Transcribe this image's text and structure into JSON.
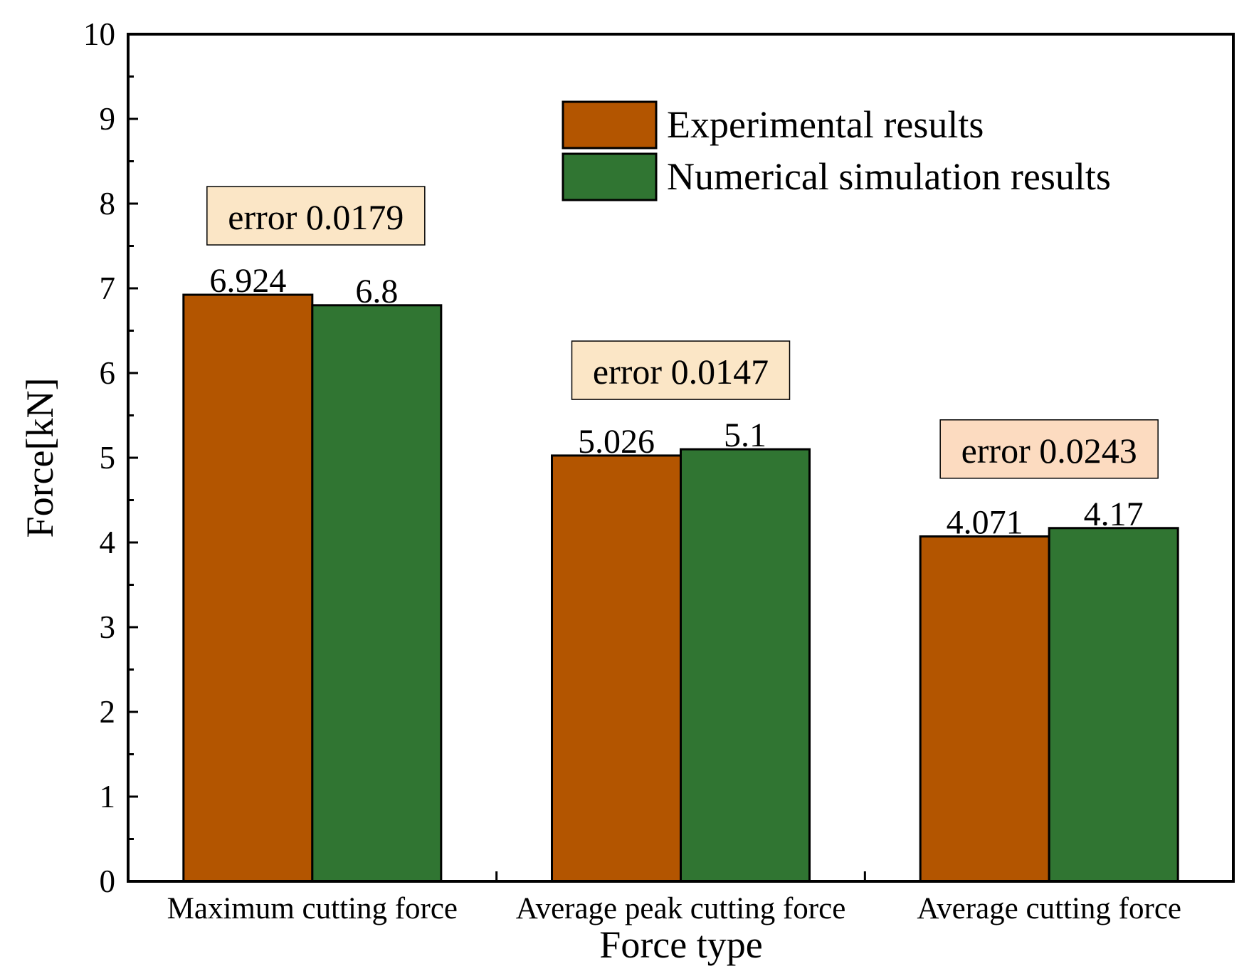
{
  "chart_data": {
    "type": "bar",
    "title": "",
    "xlabel": "Force type",
    "ylabel": "Force[kN]",
    "ylim": [
      0,
      10
    ],
    "yticks": [
      "0",
      "1",
      "2",
      "3",
      "4",
      "5",
      "6",
      "7",
      "8",
      "9",
      "10"
    ],
    "categories": [
      "Maximum cutting force",
      "Average peak cutting force",
      "Average cutting force"
    ],
    "series": [
      {
        "name": "Experimental results",
        "color": "#b35500",
        "values": [
          6.924,
          5.026,
          4.071
        ],
        "labels": [
          "6.924",
          "5.026",
          "4.071"
        ]
      },
      {
        "name": "Numerical simulation results",
        "color": "#307532",
        "values": [
          6.8,
          5.1,
          4.17
        ],
        "labels": [
          "6.8",
          "5.1",
          "4.17"
        ]
      }
    ],
    "annotations": [
      {
        "text": "error 0.0179",
        "color": "#fbe6c6"
      },
      {
        "text": "error 0.0147",
        "color": "#fbe6c6"
      },
      {
        "text": "error 0.0243",
        "color": "#fcdbc0"
      }
    ],
    "legend": "top-right",
    "grid": false
  }
}
